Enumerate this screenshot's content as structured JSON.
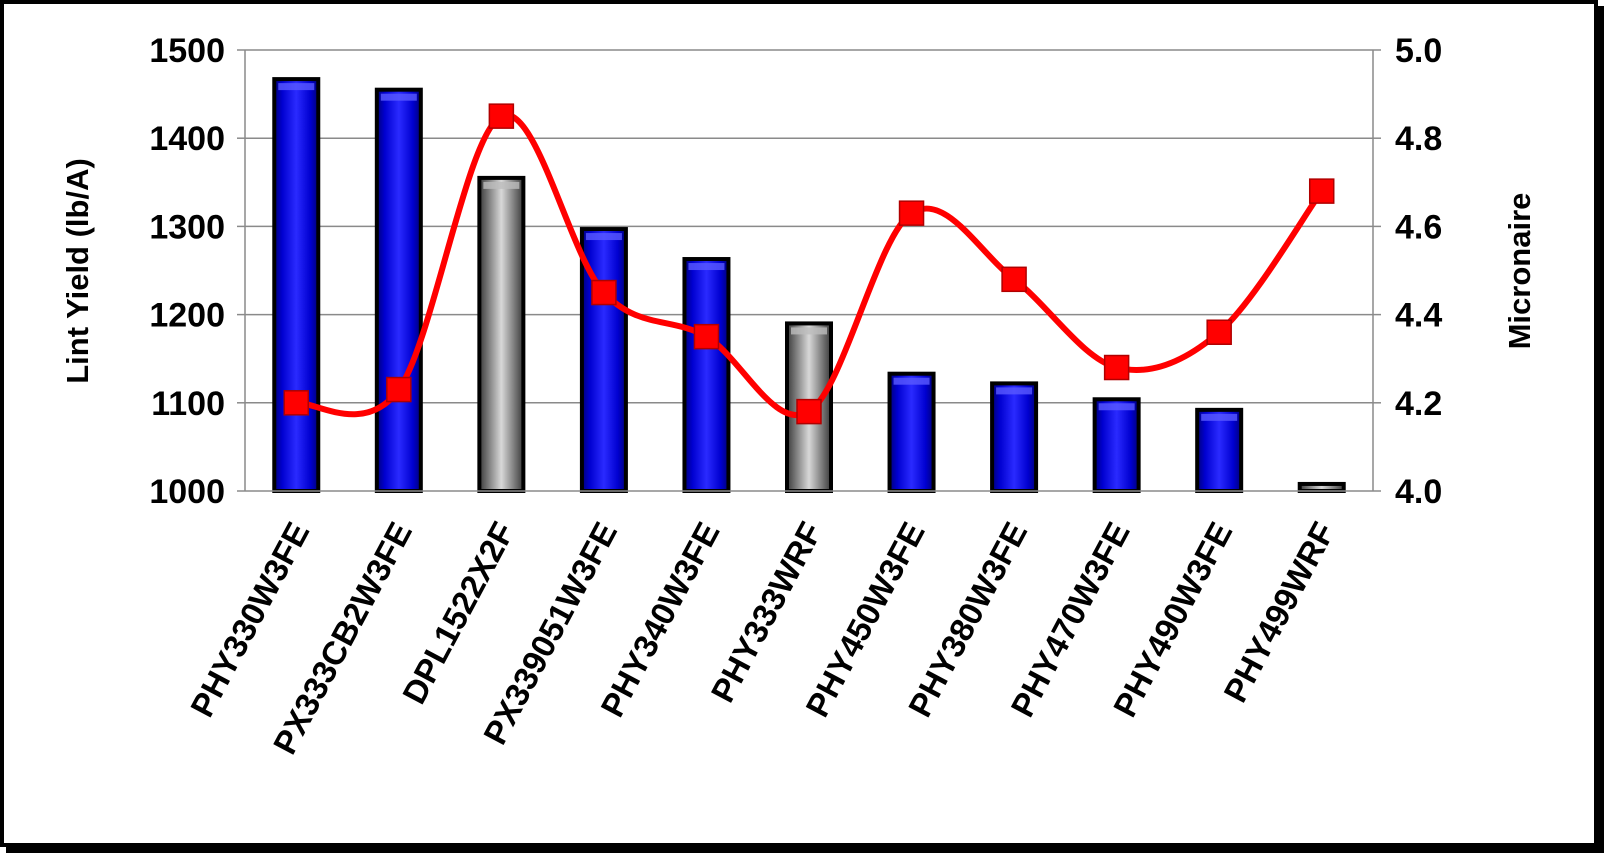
{
  "chart_data": {
    "type": "bar",
    "title": "",
    "categories": [
      "PHY330W3FE",
      "PX333CB2W3FE",
      "DPL1522X2F",
      "PX339051W3FE",
      "PHY340W3FE",
      "PHY333WRF",
      "PHY450W3FE",
      "PHY380W3FE",
      "PHY470W3FE",
      "PHY490W3FE",
      "PHY499WRF"
    ],
    "series": [
      {
        "type": "bar",
        "axis": "left",
        "values": [
          1467,
          1455,
          1355,
          1297,
          1263,
          1190,
          1133,
          1122,
          1104,
          1092,
          1008
        ],
        "bar_colors": [
          "#0000ee",
          "#0000ee",
          "#8c8c8c",
          "#0000ee",
          "#0000ee",
          "#8c8c8c",
          "#0000ee",
          "#0000ee",
          "#0000ee",
          "#0000ee",
          "#8c8c8c"
        ]
      },
      {
        "type": "line",
        "axis": "right",
        "smooth": true,
        "marker": "square",
        "color": "#ff0000",
        "values": [
          4.2,
          4.23,
          4.85,
          4.45,
          4.35,
          4.18,
          4.63,
          4.48,
          4.28,
          4.36,
          4.68
        ]
      }
    ],
    "ylabel": "Lint Yield (lb/A)",
    "ylim": [
      1000,
      1500
    ],
    "yticks": [
      "1000",
      "1100",
      "1200",
      "1300",
      "1400",
      "1500"
    ],
    "y2label": "Micronaire",
    "y2lim": [
      4.0,
      5.0
    ],
    "y2ticks": [
      "4.0",
      "4.2",
      "4.4",
      "4.6",
      "4.8",
      "5.0"
    ],
    "grid": true,
    "legend": "none"
  }
}
